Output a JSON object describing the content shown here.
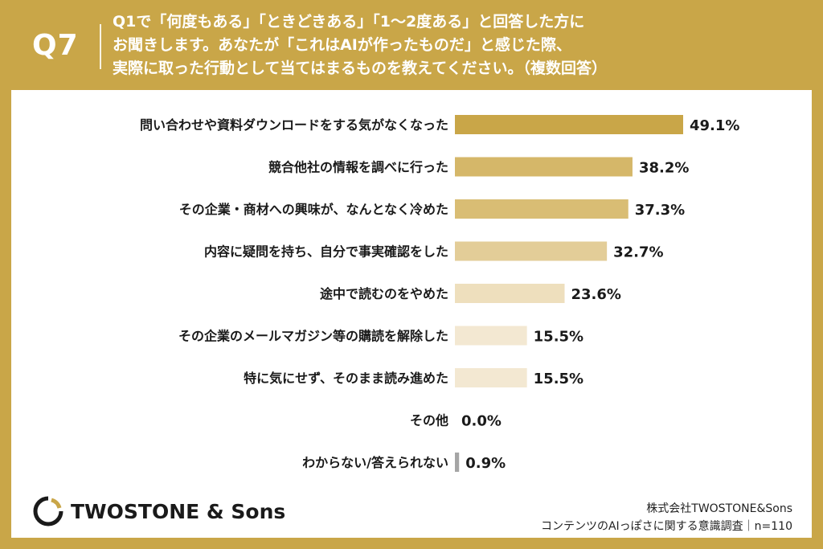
{
  "header": {
    "question_label": "Q7",
    "question_lines": [
      "Q1で「何度もある」「ときどきある」「1〜2度ある」と回答した方に",
      "お聞きします。あなたが「これはAIが作ったものだ」と感じた際、",
      "実際に取った行動として当てはまるものを教えてください。（複数回答）"
    ]
  },
  "chart_data": {
    "type": "bar",
    "orientation": "horizontal",
    "categories": [
      "問い合わせや資料ダウンロードをする気がなくなった",
      "競合他社の情報を調べに行った",
      "その企業・商材への興味が、なんとなく冷めた",
      "内容に疑問を持ち、自分で事実確認をした",
      "途中で読むのをやめた",
      "その企業のメールマガジン等の購読を解除した",
      "特に気にせず、そのまま読み進めた",
      "その他",
      "わからない/答えられない"
    ],
    "values": [
      49.1,
      38.2,
      37.3,
      32.7,
      23.6,
      15.5,
      15.5,
      0.0,
      0.9
    ],
    "value_labels": [
      "49.1%",
      "38.2%",
      "37.3%",
      "32.7%",
      "23.6%",
      "15.5%",
      "15.5%",
      "0.0%",
      "0.9%"
    ],
    "xlim": [
      0,
      60
    ],
    "colors": [
      "#c9a648",
      "#d5b769",
      "#d9bd74",
      "#e3cd98",
      "#eedfbd",
      "#f3e8d2",
      "#f3e8d2",
      "#f3e8d2",
      "#a5a5a5"
    ]
  },
  "footer": {
    "logo_text": "TWOSTONE & Sons",
    "company": "株式会社TWOSTONE&Sons",
    "survey": "コンテンツのAIっぽさに関する意識調査｜n=110"
  },
  "colors": {
    "accent": "#c9a648",
    "text": "#1a1a1a"
  }
}
